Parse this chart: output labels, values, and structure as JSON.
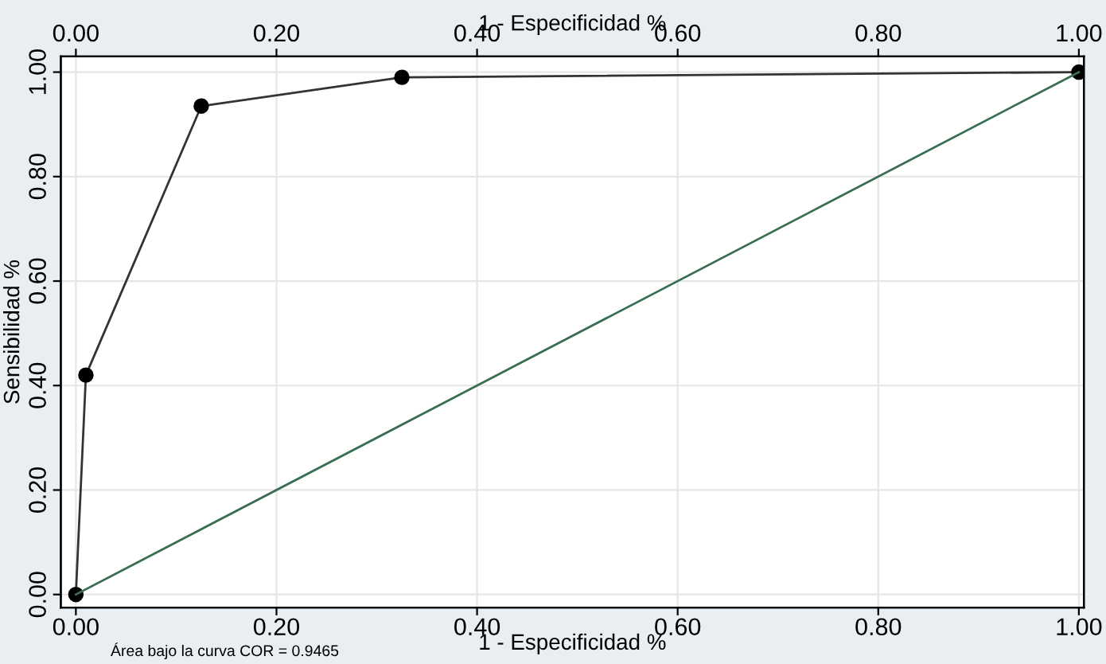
{
  "chart_data": {
    "type": "line",
    "xlabel": "1 - Especificidad %",
    "x2label": "1 - Especificidad %",
    "ylabel": "Sensibilidad %",
    "annotations": [
      "Área bajo la curva COR = 0.9465"
    ],
    "series": [
      {
        "x": [
          0,
          0.01,
          0.125,
          0.325,
          1
        ],
        "values": [
          0,
          0.42,
          0.935,
          0.99,
          1
        ],
        "color": "#333333",
        "marker": "circle"
      },
      {
        "x": [
          0,
          1
        ],
        "values": [
          0,
          1
        ],
        "color": "#3a6e50",
        "marker": "none"
      }
    ],
    "xlim": [
      -0.015,
      1.005
    ],
    "x2lim": [
      -0.015,
      1.005
    ],
    "ylim": [
      -0.025,
      1.03
    ],
    "xticks": [
      {
        "value": 0,
        "label": "0.00"
      },
      {
        "value": 0.2,
        "label": "0.20"
      },
      {
        "value": 0.4,
        "label": "0.40"
      },
      {
        "value": 0.6,
        "label": "0.60"
      },
      {
        "value": 0.8,
        "label": "0.80"
      },
      {
        "value": 1,
        "label": "1.00"
      }
    ],
    "x2ticks": [
      {
        "value": 0,
        "label": "0.00"
      },
      {
        "value": 0.2,
        "label": "0.20"
      },
      {
        "value": 0.4,
        "label": "0.40"
      },
      {
        "value": 0.6,
        "label": "0.60"
      },
      {
        "value": 0.8,
        "label": "0.80"
      },
      {
        "value": 1,
        "label": "1.00"
      }
    ],
    "yticks": [
      {
        "value": 0,
        "label": "0.00"
      },
      {
        "value": 0.2,
        "label": "0.20"
      },
      {
        "value": 0.4,
        "label": "0.40"
      },
      {
        "value": 0.6,
        "label": "0.60"
      },
      {
        "value": 0.8,
        "label": "0.80"
      },
      {
        "value": 1,
        "label": "1.00"
      }
    ],
    "grid": true,
    "line_style": "solid"
  }
}
